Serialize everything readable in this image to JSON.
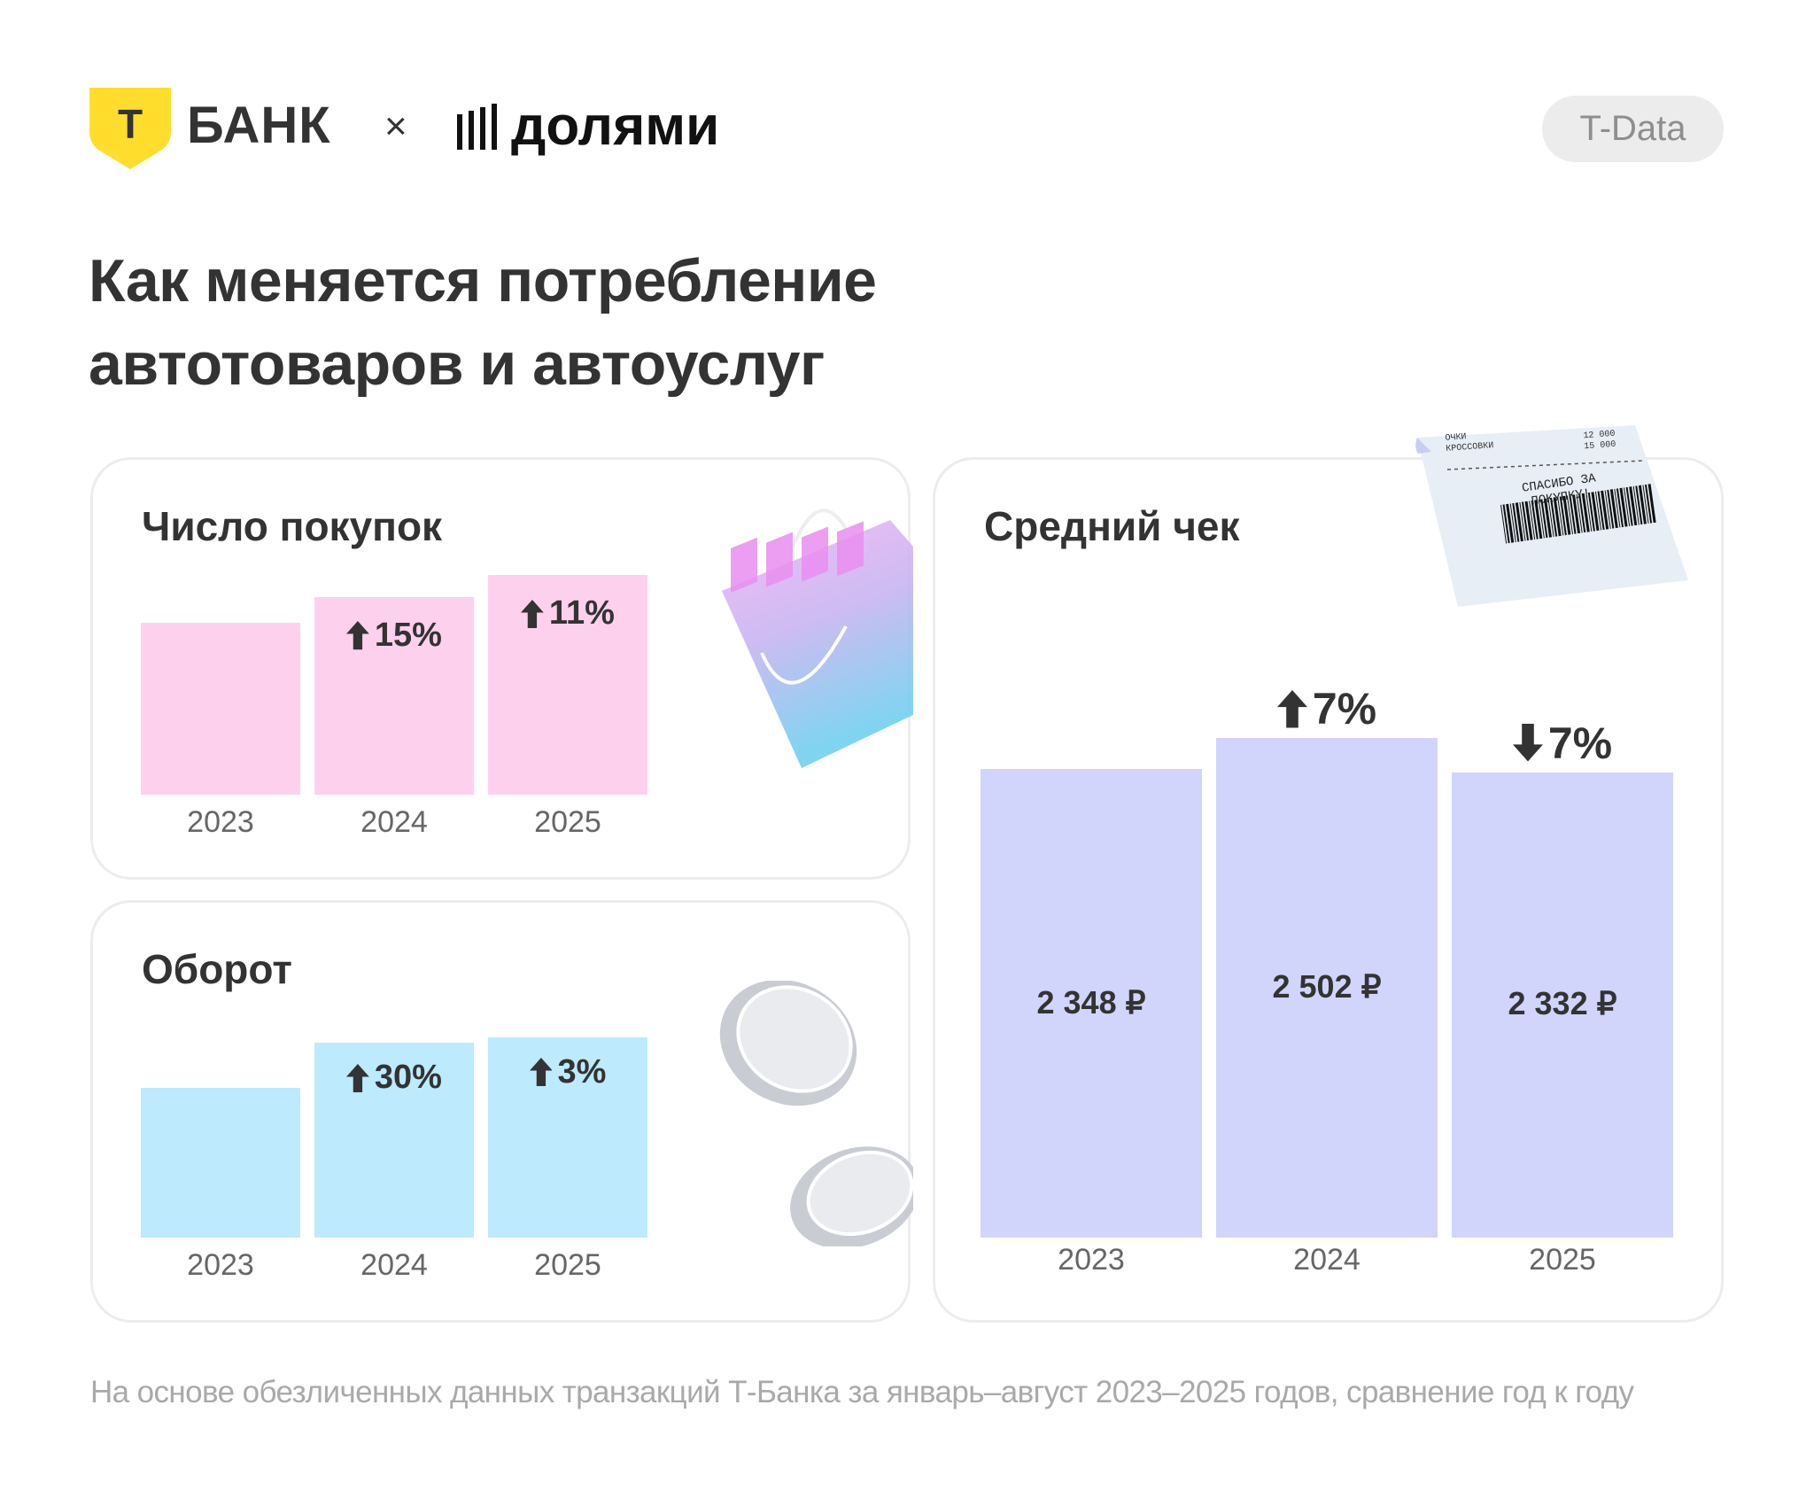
{
  "header": {
    "brand_bank": "БАНК",
    "brand_bank_logo_letter": "Т",
    "separator": "×",
    "brand_partner": "долями",
    "badge": "T-Data"
  },
  "title": {
    "line1": "Как меняется потребление",
    "line2": "автотоваров и автоуслуг"
  },
  "colors": {
    "pink": "#fdd1ee",
    "cyan": "#bdeafc",
    "lavender": "#d1d5fb",
    "yellow": "#ffdd2d",
    "text": "#333333"
  },
  "chart_data": [
    {
      "type": "bar",
      "title": "Число покупок",
      "categories": [
        "2023",
        "2024",
        "2025"
      ],
      "values": [
        100,
        115,
        127.7
      ],
      "value_units": "index (2023 = 100)",
      "changes": [
        null,
        {
          "dir": "up",
          "label": "15%"
        },
        {
          "dir": "up",
          "label": "11%"
        }
      ],
      "color": "#fdd1ee"
    },
    {
      "type": "bar",
      "title": "Оборот",
      "categories": [
        "2023",
        "2024",
        "2025"
      ],
      "values": [
        100,
        130,
        133.9
      ],
      "value_units": "index (2023 = 100)",
      "changes": [
        null,
        {
          "dir": "up",
          "label": "30%"
        },
        {
          "dir": "up",
          "label": "3%"
        }
      ],
      "color": "#bdeafc"
    },
    {
      "type": "bar",
      "title": "Средний чек",
      "categories": [
        "2023",
        "2024",
        "2025"
      ],
      "values": [
        2348,
        2502,
        2332
      ],
      "value_labels": [
        "2 348 ₽",
        "2 502 ₽",
        "2 332 ₽"
      ],
      "changes": [
        null,
        {
          "dir": "up",
          "label": "7%"
        },
        {
          "dir": "down",
          "label": "7%"
        }
      ],
      "color": "#d1d5fb",
      "ylim": [
        0,
        2600
      ]
    }
  ],
  "receipt": {
    "item1_name": "ОЧКИ",
    "item1_price": "12 000",
    "item2_name": "КРОССОВКИ",
    "item2_price": "15 000",
    "thanks": "СПАСИБО ЗА ПОКУПКУ!"
  },
  "footnote": "На основе обезличенных данных транзакций Т-Банка за январь–август 2023–2025 годов, сравнение год к году"
}
